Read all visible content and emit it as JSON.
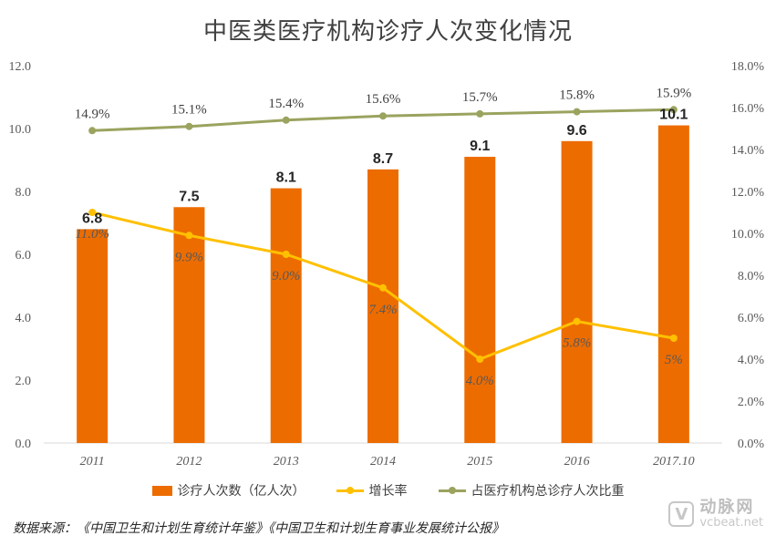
{
  "chart_data": {
    "type": "bar",
    "title": "中医类医疗机构诊疗人次变化情况",
    "categories": [
      "2011",
      "2012",
      "2013",
      "2014",
      "2015",
      "2016",
      "2017.10"
    ],
    "series": [
      {
        "name": "诊疗人次数（亿人次）",
        "type": "bar",
        "axis": "left",
        "color": "#ED6C00",
        "values": [
          6.8,
          7.5,
          8.1,
          8.7,
          9.1,
          9.6,
          10.1
        ],
        "labels": [
          "6.8",
          "7.5",
          "8.1",
          "8.7",
          "9.1",
          "9.6",
          "10.1"
        ]
      },
      {
        "name": "增长率",
        "type": "line",
        "axis": "right",
        "color": "#FFC000",
        "values": [
          11.0,
          9.9,
          9.0,
          7.4,
          4.0,
          5.8,
          5.0
        ],
        "labels": [
          "11.0%",
          "9.9%",
          "9.0%",
          "7.4%",
          "4.0%",
          "5.8%",
          "5%"
        ]
      },
      {
        "name": "占医疗机构总诊疗人次比重",
        "type": "line",
        "axis": "right",
        "color": "#9BA35F",
        "values": [
          14.9,
          15.1,
          15.4,
          15.6,
          15.7,
          15.8,
          15.9
        ],
        "labels": [
          "14.9%",
          "15.1%",
          "15.4%",
          "15.6%",
          "15.7%",
          "15.8%",
          "15.9%"
        ]
      }
    ],
    "ylim_left": [
      0,
      12
    ],
    "yticks_left": [
      "0.0",
      "2.0",
      "4.0",
      "6.0",
      "8.0",
      "10.0",
      "12.0"
    ],
    "ylim_right": [
      0,
      18
    ],
    "yticks_right": [
      "0.0%",
      "2.0%",
      "4.0%",
      "6.0%",
      "8.0%",
      "10.0%",
      "12.0%",
      "14.0%",
      "16.0%",
      "18.0%"
    ],
    "grid": false,
    "legend": "bottom"
  },
  "source": "数据来源：《中国卫生和计划生育统计年鉴》《中国卫生和计划生育事业发展统计公报》",
  "watermark": {
    "brand_cn": "动脉网",
    "brand_en": "vcbeat.net",
    "icon_letter": "V"
  }
}
